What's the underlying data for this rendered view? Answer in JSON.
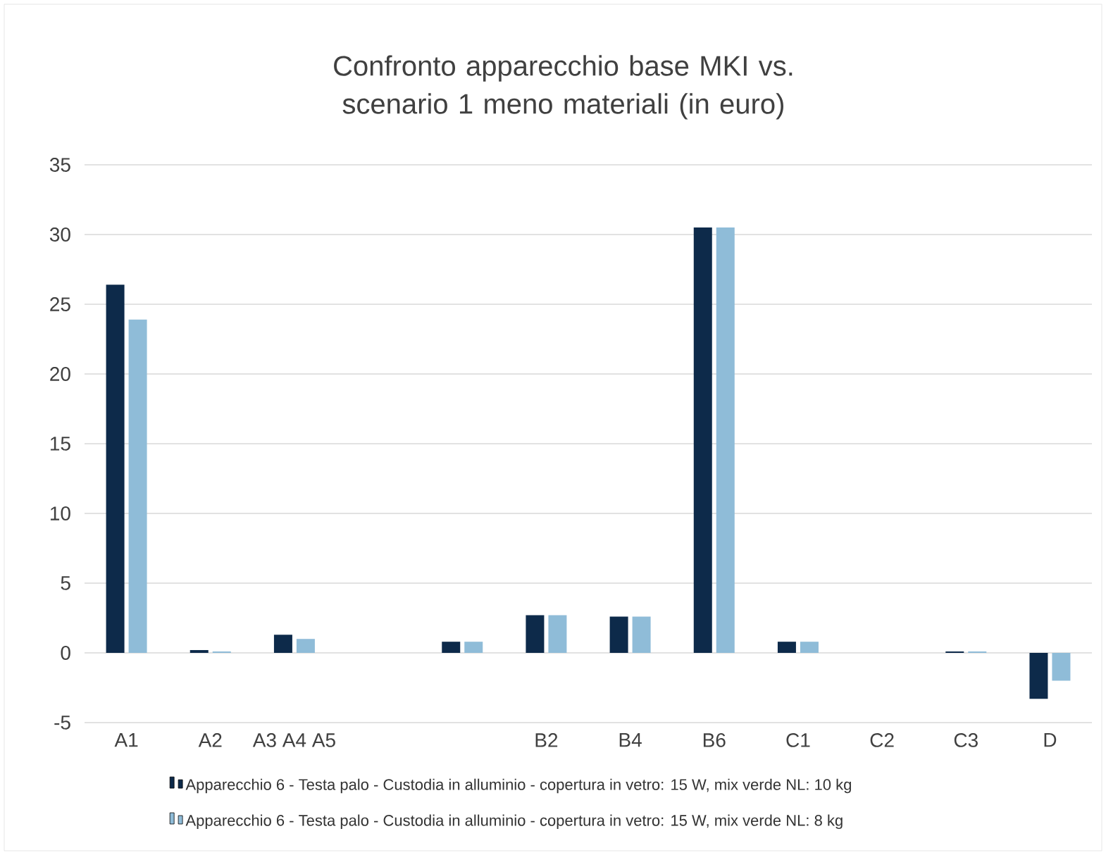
{
  "chart_data": {
    "type": "bar",
    "title": "Confronto apparecchio base MKI vs. scenario 1 meno materiali (in euro)",
    "categories": [
      "A1",
      "A2",
      "A3 A4 A5",
      null,
      null,
      "B2",
      "B4",
      "B6",
      "C1",
      "C2",
      "C3",
      "D"
    ],
    "series": [
      {
        "name": "Apparecchio 6 - Testa palo - Custodia in alluminio - copertura in vetro: 15 W, mix verde NL: 10 kg",
        "color": "#0d2a4a",
        "values": [
          26.4,
          0.2,
          1.3,
          null,
          0.8,
          2.7,
          2.6,
          30.5,
          0.8,
          0,
          0.1,
          -3.3
        ]
      },
      {
        "name": "Apparecchio 6 - Testa palo - Custodia in alluminio - copertura in vetro: 15 W, mix verde NL: 8 kg",
        "color": "#8fbcd8",
        "values": [
          23.9,
          0.1,
          1.0,
          null,
          0.8,
          2.7,
          2.6,
          30.5,
          0.8,
          0,
          0.1,
          -2.0
        ]
      }
    ],
    "ylim": [
      -5,
      35
    ],
    "yticks": [
      -5,
      0,
      5,
      10,
      15,
      20,
      25,
      30,
      35
    ],
    "grid": "y",
    "legend": "bottom"
  }
}
